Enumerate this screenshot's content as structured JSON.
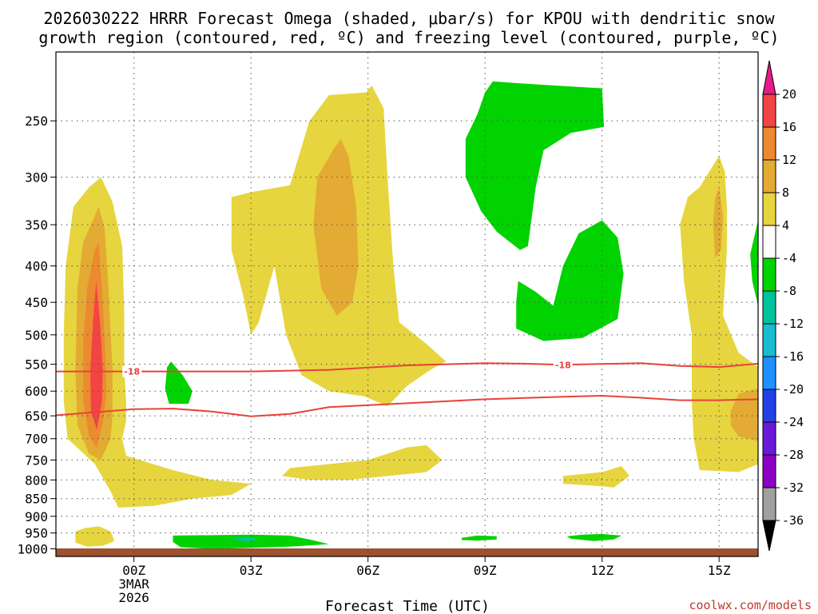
{
  "title_line1": "2026030222 HRRR Forecast Omega (shaded, μbar/s) for KPOU with dendritic snow",
  "title_line2": "growth region (contoured, red, ºC) and freezing level (contoured, purple, ºC)",
  "credit": "coolwx.com/models",
  "colors": {
    "dark_red": "#f24444",
    "orange": "#ec8a30",
    "dark_yellow": "#e3ab33",
    "yellow": "#e6d53e",
    "green": "#00d300",
    "teal": "#00c29c",
    "ground": "#a0522d",
    "contour_red": "#e8423a"
  },
  "chart_data": {
    "type": "heatmap",
    "xlabel": "Forecast Time (UTC)",
    "ylabel": "",
    "x_ticks": [
      {
        "hour": 0,
        "label": "00Z",
        "sub1": "3MAR",
        "sub2": "2026"
      },
      {
        "hour": 3,
        "label": "03Z"
      },
      {
        "hour": 6,
        "label": "06Z"
      },
      {
        "hour": 9,
        "label": "09Z"
      },
      {
        "hour": 12,
        "label": "12Z"
      },
      {
        "hour": 15,
        "label": "15Z"
      }
    ],
    "x_range_hours": [
      -2,
      16
    ],
    "y_ticks_hpa": [
      250,
      300,
      350,
      400,
      450,
      500,
      550,
      600,
      650,
      700,
      750,
      800,
      850,
      900,
      950,
      1000
    ],
    "y_range_hpa": [
      200,
      1025
    ],
    "y_scale": "log",
    "grid": true,
    "colorbar": {
      "labels": [
        "20",
        "16",
        "12",
        "8",
        "4",
        "-4",
        "-8",
        "-12",
        "-16",
        "-20",
        "-24",
        "-28",
        "-32",
        "-36"
      ],
      "colors": [
        "#f24444",
        "#ec8a30",
        "#e3ab33",
        "#e6d53e",
        "#ffffff",
        "#00d300",
        "#00c29c",
        "#19bcd0",
        "#1e90ff",
        "#2142e6",
        "#6a19d8",
        "#8e00c4",
        "#a0a0a0"
      ],
      "top_arrow_color": "#e6198a",
      "bottom_arrow_color": "#000000"
    },
    "regions": [
      {
        "level": 4,
        "points": [
          [
            -1.15,
            310
          ],
          [
            -0.85,
            300
          ],
          [
            -0.55,
            325
          ],
          [
            -0.3,
            375
          ],
          [
            -0.25,
            460
          ],
          [
            -0.25,
            560
          ],
          [
            -0.2,
            620
          ],
          [
            -0.2,
            660
          ],
          [
            -0.3,
            700
          ],
          [
            -0.2,
            740
          ],
          [
            1,
            775
          ],
          [
            2,
            800
          ],
          [
            3,
            810
          ],
          [
            2.5,
            840
          ],
          [
            1.5,
            850
          ],
          [
            0.5,
            870
          ],
          [
            -0.4,
            875
          ],
          [
            -0.6,
            830
          ],
          [
            -1.0,
            760
          ],
          [
            -1.7,
            700
          ],
          [
            -1.8,
            620
          ],
          [
            -1.8,
            500
          ],
          [
            -1.75,
            400
          ],
          [
            -1.55,
            330
          ]
        ]
      },
      {
        "level": 8,
        "points": [
          [
            -1.05,
            345
          ],
          [
            -0.9,
            330
          ],
          [
            -0.75,
            355
          ],
          [
            -0.65,
            430
          ],
          [
            -0.55,
            560
          ],
          [
            -0.55,
            650
          ],
          [
            -0.6,
            700
          ],
          [
            -0.85,
            750
          ],
          [
            -1.15,
            735
          ],
          [
            -1.45,
            670
          ],
          [
            -1.5,
            560
          ],
          [
            -1.45,
            430
          ],
          [
            -1.3,
            370
          ]
        ]
      },
      {
        "level": 12,
        "points": [
          [
            -1.0,
            380
          ],
          [
            -0.9,
            370
          ],
          [
            -0.85,
            410
          ],
          [
            -0.75,
            500
          ],
          [
            -0.7,
            600
          ],
          [
            -0.8,
            665
          ],
          [
            -0.95,
            720
          ],
          [
            -1.15,
            695
          ],
          [
            -1.3,
            620
          ],
          [
            -1.3,
            510
          ],
          [
            -1.2,
            430
          ]
        ]
      },
      {
        "level": 16,
        "points": [
          [
            -0.97,
            420
          ],
          [
            -0.87,
            480
          ],
          [
            -0.8,
            560
          ],
          [
            -0.82,
            620
          ],
          [
            -0.95,
            680
          ],
          [
            -1.1,
            640
          ],
          [
            -1.12,
            560
          ],
          [
            -1.05,
            480
          ]
        ]
      },
      {
        "level": 4,
        "points": [
          [
            -1.5,
            945
          ],
          [
            -1.25,
            935
          ],
          [
            -0.9,
            930
          ],
          [
            -0.6,
            945
          ],
          [
            -0.5,
            975
          ],
          [
            -0.8,
            990
          ],
          [
            -1.2,
            993
          ],
          [
            -1.5,
            980
          ]
        ]
      },
      {
        "level": 4,
        "points": [
          [
            3.0,
            315
          ],
          [
            4.0,
            308
          ],
          [
            4.5,
            250
          ],
          [
            5.0,
            230
          ],
          [
            5.95,
            228
          ],
          [
            6.1,
            223
          ],
          [
            6.4,
            240
          ],
          [
            6.5,
            300
          ],
          [
            6.65,
            400
          ],
          [
            6.8,
            480
          ],
          [
            7.5,
            515
          ],
          [
            8.0,
            545
          ],
          [
            7.6,
            560
          ],
          [
            7.0,
            590
          ],
          [
            6.5,
            630
          ],
          [
            5.9,
            610
          ],
          [
            5.0,
            600
          ],
          [
            4.3,
            570
          ],
          [
            3.9,
            500
          ],
          [
            3.6,
            400
          ],
          [
            3.2,
            480
          ],
          [
            3.0,
            500
          ],
          [
            2.8,
            440
          ],
          [
            2.5,
            380
          ],
          [
            2.5,
            320
          ]
        ]
      },
      {
        "level": 8,
        "points": [
          [
            5.1,
            275
          ],
          [
            5.3,
            265
          ],
          [
            5.5,
            280
          ],
          [
            5.7,
            330
          ],
          [
            5.75,
            400
          ],
          [
            5.6,
            450
          ],
          [
            5.2,
            470
          ],
          [
            4.8,
            430
          ],
          [
            4.6,
            350
          ],
          [
            4.7,
            300
          ]
        ]
      },
      {
        "level": 4,
        "points": [
          [
            4.0,
            770
          ],
          [
            5.0,
            760
          ],
          [
            6.0,
            750
          ],
          [
            7.0,
            720
          ],
          [
            7.5,
            715
          ],
          [
            7.9,
            750
          ],
          [
            7.5,
            780
          ],
          [
            6.5,
            790
          ],
          [
            5.5,
            800
          ],
          [
            4.5,
            800
          ],
          [
            3.8,
            790
          ]
        ]
      },
      {
        "level": 4,
        "points": [
          [
            11.0,
            790
          ],
          [
            12.0,
            780
          ],
          [
            12.5,
            765
          ],
          [
            12.7,
            790
          ],
          [
            12.3,
            820
          ],
          [
            11.8,
            815
          ],
          [
            11.0,
            810
          ]
        ]
      },
      {
        "level": 4,
        "points": [
          [
            14.5,
            310
          ],
          [
            15.0,
            280
          ],
          [
            15.15,
            295
          ],
          [
            15.2,
            330
          ],
          [
            15.2,
            380
          ],
          [
            15.1,
            470
          ],
          [
            15.5,
            530
          ],
          [
            16,
            555
          ],
          [
            16,
            760
          ],
          [
            15.5,
            780
          ],
          [
            14.5,
            775
          ],
          [
            14.35,
            700
          ],
          [
            14.3,
            620
          ],
          [
            14.3,
            500
          ],
          [
            14.1,
            420
          ],
          [
            14.0,
            350
          ],
          [
            14.2,
            320
          ]
        ]
      },
      {
        "level": 8,
        "points": [
          [
            14.9,
            320
          ],
          [
            15.0,
            310
          ],
          [
            15.1,
            340
          ],
          [
            15.05,
            380
          ],
          [
            14.9,
            390
          ],
          [
            14.85,
            350
          ]
        ]
      },
      {
        "level": 8,
        "points": [
          [
            15.3,
            640
          ],
          [
            15.5,
            605
          ],
          [
            16,
            595
          ],
          [
            16,
            705
          ],
          [
            15.5,
            695
          ],
          [
            15.3,
            670
          ]
        ]
      },
      {
        "level": -4,
        "points": [
          [
            8.5,
            265
          ],
          [
            8.8,
            245
          ],
          [
            9.0,
            228
          ],
          [
            9.2,
            220
          ],
          [
            10.2,
            222
          ],
          [
            12.0,
            225
          ],
          [
            12.05,
            255
          ],
          [
            11.2,
            260
          ],
          [
            10.5,
            275
          ],
          [
            10.3,
            310
          ],
          [
            10.1,
            375
          ],
          [
            9.9,
            380
          ],
          [
            9.3,
            358
          ],
          [
            8.9,
            335
          ],
          [
            8.5,
            300
          ]
        ]
      },
      {
        "level": -4,
        "points": [
          [
            9.85,
            420
          ],
          [
            10.3,
            435
          ],
          [
            10.75,
            455
          ],
          [
            11.0,
            400
          ],
          [
            11.4,
            360
          ],
          [
            12.0,
            345
          ],
          [
            12.4,
            365
          ],
          [
            12.55,
            410
          ],
          [
            12.4,
            475
          ],
          [
            11.5,
            505
          ],
          [
            10.5,
            510
          ],
          [
            9.8,
            490
          ],
          [
            9.8,
            450
          ]
        ]
      },
      {
        "level": -4,
        "points": [
          [
            16,
            345
          ],
          [
            16,
            455
          ],
          [
            15.85,
            420
          ],
          [
            15.8,
            385
          ]
        ]
      },
      {
        "level": -4,
        "points": [
          [
            0.85,
            555
          ],
          [
            0.95,
            545
          ],
          [
            1.25,
            570
          ],
          [
            1.5,
            600
          ],
          [
            1.4,
            625
          ],
          [
            0.9,
            625
          ],
          [
            0.8,
            595
          ]
        ]
      },
      {
        "level": -4,
        "points": [
          [
            1.0,
            958
          ],
          [
            3.0,
            955
          ],
          [
            4.0,
            958
          ],
          [
            4.5,
            970
          ],
          [
            5.0,
            985
          ],
          [
            4.0,
            993
          ],
          [
            3.0,
            997
          ],
          [
            2.0,
            1000
          ],
          [
            1.2,
            995
          ],
          [
            1.0,
            978
          ]
        ]
      },
      {
        "level": -8,
        "points": [
          [
            2.5,
            968
          ],
          [
            2.9,
            962
          ],
          [
            3.2,
            970
          ],
          [
            2.9,
            978
          ]
        ]
      },
      {
        "level": -4,
        "points": [
          [
            8.4,
            965
          ],
          [
            8.8,
            958
          ],
          [
            9.3,
            960
          ],
          [
            9.3,
            970
          ],
          [
            8.8,
            974
          ],
          [
            8.4,
            972
          ]
        ]
      },
      {
        "level": -4,
        "points": [
          [
            11.1,
            960
          ],
          [
            11.5,
            955
          ],
          [
            12.0,
            953
          ],
          [
            12.5,
            958
          ],
          [
            12.3,
            970
          ],
          [
            11.8,
            975
          ],
          [
            11.2,
            968
          ]
        ]
      }
    ],
    "contours": [
      {
        "label": "-18",
        "label_hours": [
          -0.05,
          11.0
        ],
        "points": [
          [
            -2,
            563
          ],
          [
            0,
            563
          ],
          [
            3,
            563
          ],
          [
            5,
            560
          ],
          [
            7,
            552
          ],
          [
            9,
            548
          ],
          [
            10,
            549
          ],
          [
            11,
            551
          ],
          [
            13,
            548
          ],
          [
            14,
            553
          ],
          [
            15,
            555
          ],
          [
            16,
            549
          ]
        ]
      },
      {
        "label": "",
        "label_hours": [],
        "points": [
          [
            -2,
            649
          ],
          [
            0,
            636
          ],
          [
            1,
            635
          ],
          [
            2,
            641
          ],
          [
            3,
            651
          ],
          [
            4,
            646
          ],
          [
            5,
            632
          ],
          [
            7,
            624
          ],
          [
            9,
            616
          ],
          [
            11,
            611
          ],
          [
            12,
            609
          ],
          [
            13,
            613
          ],
          [
            14,
            618
          ],
          [
            15,
            618
          ],
          [
            16,
            616
          ]
        ]
      }
    ]
  }
}
